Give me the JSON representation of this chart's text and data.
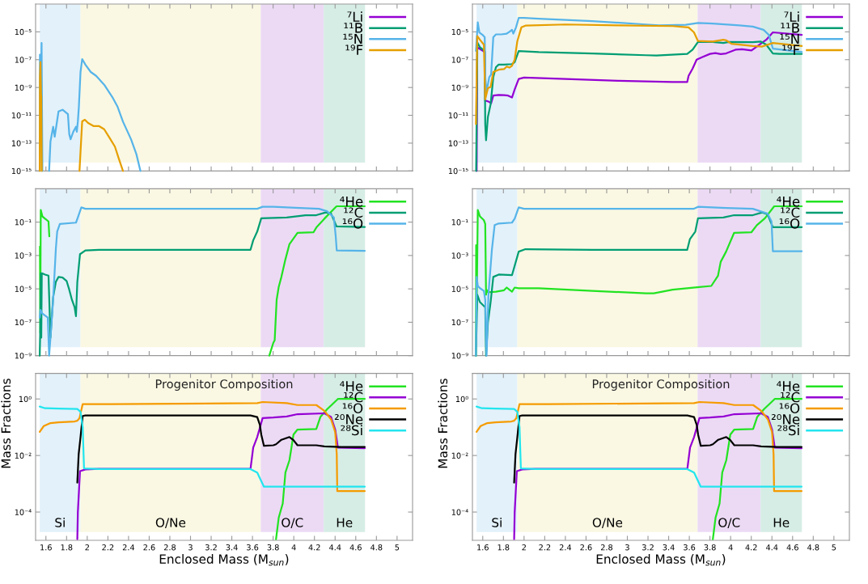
{
  "chart_data": [
    {
      "type": "line",
      "log": "y",
      "legend": "top right",
      "tick_labels": "y",
      "xlim": [
        1.5,
        5.15
      ],
      "xticks": [
        1.6,
        1.8,
        2,
        2.2,
        2.4,
        2.6,
        2.8,
        3,
        3.2,
        3.4,
        3.6,
        3.8,
        4,
        4.2,
        4.4,
        4.6,
        4.8,
        5
      ],
      "ylim": [
        1e-15,
        0.001
      ],
      "yticks": [
        {
          "value": 1e-15,
          "label": "10⁻¹⁵"
        },
        {
          "value": 1e-13,
          "label": "10⁻¹³"
        },
        {
          "value": 1e-11,
          "label": "10⁻¹¹"
        },
        {
          "value": 1e-09,
          "label": "10⁻⁹"
        },
        {
          "value": 1e-07,
          "label": "10⁻⁷"
        },
        {
          "value": 1e-05,
          "label": "10⁻⁵"
        }
      ],
      "bands": [
        {
          "axis": "x",
          "from": 1.54,
          "to": 1.935,
          "label": null,
          "color": "#e3f1fa"
        },
        {
          "axis": "x",
          "from": 1.935,
          "to": 3.68,
          "label": null,
          "color": "#faf8e3"
        },
        {
          "axis": "x",
          "from": 3.68,
          "to": 4.29,
          "label": null,
          "color": "#ecdaf5"
        },
        {
          "axis": "x",
          "from": 4.29,
          "to": 4.69,
          "label": null,
          "color": "#d6ede6"
        }
      ],
      "series": [
        {
          "name": "⁷Li",
          "color": "#9400d3"
        },
        {
          "name": "¹¹B",
          "color": "#009e73"
        },
        {
          "name": "¹⁵N",
          "color": "#56b4e9",
          "x": [
            1.54,
            1.542,
            1.55,
            1.558,
            1.566,
            1.6,
            1.631,
            1.644,
            1.67,
            1.685,
            1.722,
            1.761,
            1.813,
            1.826,
            1.839,
            1.865,
            1.891,
            1.899,
            1.909,
            1.919,
            1.935,
            1.951,
            1.982,
            2.034,
            2.086,
            2.164,
            2.242,
            2.294,
            2.346,
            2.424,
            2.476,
            2.515
          ],
          "values": [
            1e-15,
            2.3e-07,
            9e-11,
            1.6e-06,
            1e-15,
            null,
            1e-15,
            1.3e-13,
            1.5e-12,
            2.9e-13,
            1.9e-11,
            2.5e-11,
            1.2e-11,
            4.4e-13,
            1.9e-13,
            6.6e-13,
            1.5e-12,
            6.6e-13,
            3.5e-12,
            4.1e-11,
            1.3e-08,
            1.1e-07,
            4.4e-08,
            1.3e-08,
            6.9e-09,
            1.6e-09,
            2.1e-10,
            4.1e-11,
            3.5e-12,
            1.9e-13,
            1.6e-14,
            1e-15
          ]
        },
        {
          "name": "¹⁹F",
          "color": "#e69f00",
          "x": [
            1.54,
            1.542,
            1.547,
            1.553,
            1.555,
            1.56,
            1.7,
            1.925,
            1.951,
            1.977,
            2.008,
            2.06,
            2.112,
            2.164,
            2.216,
            2.268,
            2.307,
            2.346
          ],
          "values": [
            1e-15,
            5.6e-09,
            6.6e-08,
            2.1e-10,
            2.6e-10,
            1e-15,
            null,
            1e-15,
            3.7e-12,
            4.8e-12,
            2.8e-12,
            1.7e-12,
            1.7e-12,
            1e-12,
            2.4e-13,
            5.6e-14,
            7.2e-15,
            1e-15
          ]
        }
      ]
    },
    {
      "type": "line",
      "log": "y",
      "legend": "top right",
      "tick_labels": "y",
      "xlim": [
        1.5,
        5.15
      ],
      "xticks": [
        1.6,
        1.8,
        2,
        2.2,
        2.4,
        2.6,
        2.8,
        3,
        3.2,
        3.4,
        3.6,
        3.8,
        4,
        4.2,
        4.4,
        4.6,
        4.8,
        5
      ],
      "ylim": [
        1e-15,
        0.001
      ],
      "yticks": [
        {
          "value": 1e-15,
          "label": "10⁻¹⁵"
        },
        {
          "value": 1e-13,
          "label": "10⁻¹³"
        },
        {
          "value": 1e-11,
          "label": "10⁻¹¹"
        },
        {
          "value": 1e-09,
          "label": "10⁻⁹"
        },
        {
          "value": 1e-07,
          "label": "10⁻⁷"
        },
        {
          "value": 1e-05,
          "label": "10⁻⁵"
        }
      ],
      "bands": [
        {
          "axis": "x",
          "from": 1.54,
          "to": 1.935,
          "label": null,
          "color": "#e3f1fa"
        },
        {
          "axis": "x",
          "from": 1.935,
          "to": 3.68,
          "label": null,
          "color": "#faf8e3"
        },
        {
          "axis": "x",
          "from": 3.68,
          "to": 4.29,
          "label": null,
          "color": "#ecdaf5"
        },
        {
          "axis": "x",
          "from": 4.29,
          "to": 4.69,
          "label": null,
          "color": "#d6ede6"
        }
      ],
      "series": [
        {
          "name": "⁷Li",
          "color": "#9400d3",
          "x": [
            1.541,
            1.547,
            1.585,
            1.619,
            1.624,
            1.637,
            1.663,
            1.681,
            1.702,
            1.754,
            1.806,
            1.845,
            1.883,
            1.909,
            1.948,
            2.0,
            2.402,
            2.92,
            3.438,
            3.58,
            3.593,
            3.632,
            3.671,
            3.723,
            3.8,
            3.852,
            3.904,
            3.956,
            4.047,
            4.111,
            4.202,
            4.345,
            4.409,
            4.689
          ],
          "values": [
            1e-15,
            7.8e-07,
            5.2e-07,
            3.5e-07,
            1.1e-10,
            1.1e-10,
            9.1e-11,
            7.4e-11,
            2.6e-10,
            2.9e-10,
            2.8e-10,
            2.6e-10,
            1.9e-10,
            7.2e-10,
            4.1e-09,
            5.2e-09,
            4.1e-09,
            3e-09,
            2.5e-09,
            2.5e-09,
            6.9e-09,
            2.3e-08,
            1e-07,
            1.5e-07,
            2.6e-07,
            3e-07,
            2.5e-07,
            2.8e-07,
            5.2e-07,
            5.6e-07,
            4.6e-07,
            2.7e-06,
            9.2e-06,
            6.1e-06
          ]
        },
        {
          "name": "¹¹B",
          "color": "#009e73",
          "x": [
            1.536,
            1.547,
            1.573,
            1.619,
            1.624,
            1.632,
            1.65,
            1.676,
            1.702,
            1.728,
            1.754,
            1.806,
            1.883,
            1.909,
            1.948,
            2.142,
            2.661,
            3.179,
            3.282,
            3.58,
            3.632,
            3.684,
            3.826,
            3.93,
            3.982,
            4.215,
            4.293,
            4.345,
            4.409,
            4.474,
            4.689
          ],
          "values": [
            1e-15,
            1.8e-06,
            7.8e-07,
            4.2e-07,
            2.3e-12,
            1.6e-13,
            7.8e-12,
            6.1e-11,
            5.6e-09,
            2.9e-08,
            4.4e-08,
            4.4e-08,
            4.8e-08,
            6.6e-08,
            4.2e-07,
            3.5e-07,
            2.8e-07,
            2.1e-07,
            2e-07,
            2.6e-07,
            5.2e-07,
            1.9e-06,
            1.9e-06,
            1.6e-06,
            1.9e-06,
            1.8e-06,
            2e-06,
            1.2e-06,
            2.8e-07,
            2.6e-07,
            2.6e-07
          ]
        },
        {
          "name": "¹⁵N",
          "color": "#56b4e9",
          "x": [
            1.534,
            1.552,
            1.567,
            1.598,
            1.619,
            1.624,
            1.637,
            1.663,
            1.681,
            1.702,
            1.728,
            1.78,
            1.832,
            1.858,
            1.883,
            1.896,
            1.922,
            1.948,
            2.0,
            2.142,
            2.661,
            3.179,
            3.308,
            3.567,
            3.684,
            3.826,
            4.085,
            4.215,
            4.319,
            4.37,
            4.409,
            4.689
          ],
          "values": [
            4.2e-07,
            4.8e-05,
            9.2e-06,
            6.1e-06,
            4.1e-06,
            5.6e-09,
            4.8e-10,
            5.6e-09,
            8.5e-09,
            4.1e-06,
            6.6e-06,
            6.6e-06,
            7.5e-06,
            1e-05,
            1.4e-05,
            7.5e-06,
            2.1e-05,
            0.0001,
            0.0001,
            8.9e-05,
            5.9e-05,
            3.4e-05,
            2.9e-05,
            3.2e-05,
            4.4e-05,
            3.9e-05,
            2.9e-05,
            2.4e-05,
            1.4e-05,
            6.1e-06,
            6.3e-07,
            3.5e-07
          ]
        },
        {
          "name": "¹⁹F",
          "color": "#e69f00",
          "x": [
            1.534,
            1.547,
            1.573,
            1.611,
            1.624,
            1.65,
            1.676,
            1.702,
            1.754,
            1.806,
            1.832,
            1.858,
            1.883,
            1.909,
            1.935,
            1.974,
            2.013,
            2.402,
            2.92,
            3.438,
            3.593,
            3.645,
            3.684,
            3.826,
            3.93,
            3.956,
            4.008,
            4.215,
            4.306,
            4.409,
            4.689
          ],
          "values": [
            2.3e-12,
            5e-06,
            2.7e-06,
            1.2e-06,
            1.4e-10,
            8.9e-10,
            1.1e-09,
            1.3e-08,
            1.9e-08,
            2.1e-08,
            3.2e-08,
            2.7e-08,
            3.6e-08,
            1e-07,
            2.2e-06,
            2.1e-05,
            2.8e-05,
            3.4e-05,
            2.9e-05,
            2.6e-05,
            2.1e-05,
            9.2e-06,
            2.2e-06,
            2e-06,
            2.7e-06,
            2.5e-06,
            1.4e-06,
            9.6e-07,
            8.8e-07,
            1.6e-06,
            9.6e-07
          ]
        }
      ]
    },
    {
      "type": "line",
      "log": "y",
      "legend": "top right",
      "tick_labels": "y",
      "xlim": [
        1.5,
        5.15
      ],
      "xticks": [
        1.6,
        1.8,
        2,
        2.2,
        2.4,
        2.6,
        2.8,
        3,
        3.2,
        3.4,
        3.6,
        3.8,
        4,
        4.2,
        4.4,
        4.6,
        4.8,
        5
      ],
      "ylim": [
        1e-09,
        10
      ],
      "yticks": [
        {
          "value": 1e-09,
          "label": "10⁻⁹"
        },
        {
          "value": 1e-07,
          "label": "10⁻⁷"
        },
        {
          "value": 1e-05,
          "label": "10⁻⁵"
        },
        {
          "value": 0.001,
          "label": "10⁻³"
        },
        {
          "value": 0.1,
          "label": "10⁻¹"
        }
      ],
      "bands": [
        {
          "axis": "x",
          "from": 1.54,
          "to": 1.935,
          "label": null,
          "color": "#e3f1fa"
        },
        {
          "axis": "x",
          "from": 1.935,
          "to": 3.68,
          "label": null,
          "color": "#faf8e3"
        },
        {
          "axis": "x",
          "from": 3.68,
          "to": 4.29,
          "label": null,
          "color": "#ecdaf5"
        },
        {
          "axis": "x",
          "from": 4.29,
          "to": 4.69,
          "label": null,
          "color": "#d6ede6"
        }
      ],
      "series": [
        {
          "name": "⁴He",
          "color": "#22e322",
          "x": [
            1.542,
            1.545,
            1.55,
            1.566,
            1.592,
            1.625,
            1.633,
            2.5,
            3.763,
            3.802,
            3.815,
            3.834,
            3.854,
            3.88,
            3.919,
            3.958,
            4.036,
            4.192,
            4.218,
            4.296,
            4.414,
            4.687
          ],
          "values": [
            0.0034,
            2.4e-08,
            0.54,
            0.22,
            0.16,
            0.11,
            0.014,
            null,
            1e-09,
            5.9e-09,
            8.3e-09,
            2.2e-06,
            1.3e-05,
            5.2e-05,
            0.00059,
            0.0048,
            0.023,
            0.025,
            0.047,
            0.16,
            0.89,
            0.89
          ]
        },
        {
          "name": "¹²C",
          "color": "#009e73",
          "x": [
            1.54,
            1.545,
            1.55,
            1.555,
            1.56,
            1.592,
            1.625,
            1.644,
            1.67,
            1.696,
            1.722,
            1.761,
            1.8,
            1.826,
            1.852,
            1.878,
            1.891,
            1.904,
            1.93,
            1.982,
            2.112,
            2.762,
            3.581,
            3.607,
            3.646,
            3.685,
            3.932,
            4.114,
            4.218,
            4.309,
            4.361,
            4.414,
            4.687
          ],
          "values": [
            1e-09,
            3.4e-08,
            8.7e-05,
            1.2e-08,
            8.7e-05,
            7.2e-05,
            6.2e-05,
            1.2e-08,
            3.2e-06,
            2.6e-05,
            5.2e-05,
            4.8e-05,
            3e-05,
            8.9e-06,
            2.2e-06,
            7.8e-07,
            2.3e-07,
            2.6e-05,
            0.0012,
            0.002,
            0.0022,
            0.0022,
            0.0022,
            0.0081,
            0.027,
            0.17,
            0.19,
            0.26,
            0.26,
            0.38,
            0.32,
            0.055,
            0.051
          ]
        },
        {
          "name": "¹⁶O",
          "color": "#56b4e9",
          "x": [
            1.54,
            1.547,
            1.566,
            1.618,
            1.631,
            1.644,
            1.67,
            1.696,
            1.709,
            1.735,
            1.891,
            1.909,
            1.943,
            1.982,
            2.242,
            3.646,
            3.698,
            3.802,
            4.062,
            4.244,
            4.322,
            4.388,
            4.406,
            4.416,
            4.687
          ],
          "values": [
            1.9e-07,
            5.5e-07,
            3.3e-07,
            1.9e-07,
            1e-09,
            1.2e-08,
            2.2e-06,
            0.0024,
            0.027,
            0.078,
            0.093,
            0.19,
            0.76,
            0.63,
            0.63,
            0.63,
            0.83,
            0.83,
            0.71,
            0.63,
            0.45,
            0.19,
            0.014,
            0.002,
            0.0019
          ]
        }
      ]
    },
    {
      "type": "line",
      "log": "y",
      "legend": "top right",
      "tick_labels": "y",
      "xlim": [
        1.5,
        5.15
      ],
      "xticks": [
        1.6,
        1.8,
        2,
        2.2,
        2.4,
        2.6,
        2.8,
        3,
        3.2,
        3.4,
        3.6,
        3.8,
        4,
        4.2,
        4.4,
        4.6,
        4.8,
        5
      ],
      "ylim": [
        1e-09,
        10
      ],
      "yticks": [
        {
          "value": 1e-09,
          "label": "10⁻⁹"
        },
        {
          "value": 1e-07,
          "label": "10⁻⁷"
        },
        {
          "value": 1e-05,
          "label": "10⁻⁵"
        },
        {
          "value": 0.001,
          "label": "10⁻³"
        },
        {
          "value": 0.1,
          "label": "10⁻¹"
        }
      ],
      "bands": [
        {
          "axis": "x",
          "from": 1.54,
          "to": 1.935,
          "label": null,
          "color": "#e3f1fa"
        },
        {
          "axis": "x",
          "from": 1.935,
          "to": 3.68,
          "label": null,
          "color": "#faf8e3"
        },
        {
          "axis": "x",
          "from": 3.68,
          "to": 4.29,
          "label": null,
          "color": "#ecdaf5"
        },
        {
          "axis": "x",
          "from": 4.29,
          "to": 4.69,
          "label": null,
          "color": "#d6ede6"
        }
      ],
      "series": [
        {
          "name": "⁴He",
          "color": "#22e322",
          "x": [
            1.534,
            1.536,
            1.541,
            1.552,
            1.573,
            1.611,
            1.624,
            1.632,
            1.637,
            1.65,
            1.728,
            1.806,
            1.832,
            1.858,
            1.883,
            1.909,
            1.948,
            2.142,
            2.661,
            3.179,
            3.256,
            3.438,
            3.697,
            3.813,
            3.878,
            3.904,
            3.956,
            4.034,
            4.202,
            4.254,
            4.332,
            4.422,
            4.689
          ],
          "values": [
            1e-09,
            0.0041,
            5.5e-07,
            0.54,
            0.22,
            0.13,
            0.078,
            4.5e-06,
            8.9e-06,
            6.3e-06,
            6.8e-06,
            8.3e-06,
            1.2e-05,
            8.9e-06,
            6.8e-06,
            1.2e-05,
            1.1e-05,
            1.1e-05,
            7.6e-06,
            5.4e-06,
            5.4e-06,
            8.9e-06,
            1.3e-05,
            1.5e-05,
            6.2e-05,
            0.00042,
            0.0017,
            0.023,
            0.025,
            0.066,
            0.17,
            0.89,
            0.89
          ]
        },
        {
          "name": "¹²C",
          "color": "#009e73",
          "x": [
            1.534,
            1.547,
            1.573,
            1.624,
            1.632,
            1.65,
            1.676,
            1.702,
            1.754,
            1.883,
            1.948,
            2.013,
            2.661,
            3.58,
            3.606,
            3.658,
            3.684,
            3.93,
            4.034,
            4.215,
            4.306,
            4.358,
            4.409,
            4.689
          ],
          "values": [
            1e-09,
            4.5e-06,
            1.6e-06,
            7.8e-07,
            1e-09,
            9.5e-08,
            1.6e-06,
            5.2e-05,
            7.2e-05,
            6.6e-05,
            0.0017,
            0.0024,
            0.0022,
            0.0022,
            0.0096,
            0.027,
            0.17,
            0.19,
            0.26,
            0.26,
            0.38,
            0.29,
            0.05,
            0.05
          ]
        },
        {
          "name": "¹⁶O",
          "color": "#56b4e9",
          "x": [
            1.534,
            1.541,
            1.552,
            1.573,
            1.611,
            1.624,
            1.637,
            1.655,
            1.689,
            1.715,
            1.754,
            1.883,
            1.909,
            1.948,
            2.0,
            3.645,
            3.684,
            3.956,
            4.215,
            4.358,
            4.396,
            4.409,
            4.689
          ],
          "values": [
            1e-09,
            5.2e-05,
            1.5e-05,
            1.1e-05,
            7.6e-06,
            2.2e-06,
            1e-09,
            4.5e-06,
            0.0024,
            0.066,
            0.083,
            0.093,
            0.16,
            0.76,
            0.63,
            0.63,
            0.83,
            0.71,
            0.63,
            0.32,
            0.11,
            0.0018,
            0.0018
          ]
        }
      ]
    },
    {
      "type": "line",
      "log": "y",
      "legend": "top right",
      "title": "Progenitor Composition",
      "xlabel": "Enclosed Mass (M$_{sun}$)",
      "ylabel": "Mass Fractions",
      "xlim": [
        1.5,
        5.15
      ],
      "xticks": [
        1.6,
        1.8,
        2,
        2.2,
        2.4,
        2.6,
        2.8,
        3,
        3.2,
        3.4,
        3.6,
        3.8,
        4,
        4.2,
        4.4,
        4.6,
        4.8,
        5
      ],
      "ylim": [
        1e-05,
        8
      ],
      "yticks": [
        {
          "value": 0.0001,
          "label": "10⁻⁴"
        },
        {
          "value": 0.01,
          "label": "10⁻²"
        },
        {
          "value": 1,
          "label": "10⁰"
        }
      ],
      "bands": [
        {
          "axis": "x",
          "from": 1.54,
          "to": 1.935,
          "label": "Si",
          "color": "#e3f1fa"
        },
        {
          "axis": "x",
          "from": 1.935,
          "to": 3.68,
          "label": "O/Ne",
          "color": "#faf8e3"
        },
        {
          "axis": "x",
          "from": 3.68,
          "to": 4.29,
          "label": "O/C",
          "color": "#ecdaf5"
        },
        {
          "axis": "x",
          "from": 4.29,
          "to": 4.69,
          "label": "He",
          "color": "#d6ede6"
        }
      ],
      "series": [
        {
          "name": "⁴He",
          "color": "#22e322",
          "x": [
            3.828,
            3.854,
            3.893,
            3.919,
            3.958,
            3.997,
            4.036,
            4.218,
            4.257,
            4.322,
            4.427,
            4.687
          ],
          "values": [
            1.1e-05,
            6.3e-05,
            0.0002,
            0.0025,
            0.0068,
            0.055,
            0.083,
            0.086,
            0.23,
            0.43,
            1.0,
            1.0
          ]
        },
        {
          "name": "¹²C",
          "color": "#9400d3",
          "x": [
            1.904,
            1.909,
            1.93,
            1.982,
            2.112,
            3.581,
            3.607,
            3.646,
            3.698,
            3.802,
            3.932,
            4.036,
            4.296,
            4.361,
            4.401,
            4.427,
            4.687
          ],
          "values": [
            1.1e-05,
            9.6e-05,
            0.0028,
            0.0032,
            0.0034,
            0.0034,
            0.019,
            0.045,
            0.21,
            0.22,
            0.24,
            0.29,
            0.31,
            0.23,
            0.083,
            0.019,
            0.018
          ]
        },
        {
          "name": "¹⁶O",
          "color": "#f59b00",
          "x": [
            1.54,
            1.579,
            1.644,
            1.722,
            1.878,
            1.904,
            1.925,
            1.956,
            2.242,
            3.646,
            3.698,
            3.932,
            4.036,
            4.218,
            4.296,
            4.361,
            4.401,
            4.416,
            4.421,
            4.687
          ],
          "values": [
            0.069,
            0.11,
            0.14,
            0.15,
            0.16,
            0.17,
            0.21,
            0.66,
            0.66,
            0.71,
            0.78,
            0.71,
            0.61,
            0.61,
            0.38,
            0.19,
            0.067,
            0.011,
            0.00055,
            0.00055
          ]
        },
        {
          "name": "²⁰Ne",
          "color": "#000000",
          "x": [
            1.904,
            1.917,
            1.935,
            1.956,
            1.982,
            3.581,
            3.646,
            3.672,
            3.685,
            3.711,
            3.802,
            3.828,
            3.88,
            3.958,
            3.997,
            4.036,
            4.218,
            4.296,
            4.453,
            4.687
          ],
          "values": [
            0.0011,
            0.011,
            0.045,
            0.25,
            0.26,
            0.26,
            0.23,
            0.12,
            0.055,
            0.022,
            0.023,
            0.025,
            0.036,
            0.045,
            0.035,
            0.023,
            0.023,
            0.021,
            0.02,
            0.02
          ]
        },
        {
          "name": "²⁸Si",
          "color": "#22e5ee",
          "x": [
            1.54,
            1.592,
            1.722,
            1.904,
            1.935,
            1.956,
            1.969,
            2.112,
            3.581,
            3.646,
            3.711,
            4.687
          ],
          "values": [
            0.54,
            0.47,
            0.46,
            0.44,
            0.35,
            0.1,
            0.0035,
            0.0033,
            0.0033,
            0.0025,
            0.00079,
            0.00079
          ]
        }
      ]
    },
    {
      "type": "line",
      "log": "y",
      "legend": "top right",
      "title": "Progenitor Composition",
      "xlabel": "Enclosed Mass (M$_{sun}$)",
      "ylabel": "Mass Fractions",
      "xlim": [
        1.5,
        5.15
      ],
      "xticks": [
        1.6,
        1.8,
        2,
        2.2,
        2.4,
        2.6,
        2.8,
        3,
        3.2,
        3.4,
        3.6,
        3.8,
        4,
        4.2,
        4.4,
        4.6,
        4.8,
        5
      ],
      "ylim": [
        1e-05,
        8
      ],
      "yticks": [
        {
          "value": 0.0001,
          "label": "10⁻⁴"
        },
        {
          "value": 0.01,
          "label": "10⁻²"
        },
        {
          "value": 1,
          "label": "10⁰"
        }
      ],
      "bands": [
        {
          "axis": "x",
          "from": 1.54,
          "to": 1.935,
          "label": "Si",
          "color": "#e3f1fa"
        },
        {
          "axis": "x",
          "from": 1.935,
          "to": 3.68,
          "label": "O/Ne",
          "color": "#faf8e3"
        },
        {
          "axis": "x",
          "from": 3.68,
          "to": 4.29,
          "label": "O/C",
          "color": "#ecdaf5"
        },
        {
          "axis": "x",
          "from": 4.29,
          "to": 4.69,
          "label": "He",
          "color": "#d6ede6"
        }
      ],
      "series": [
        {
          "name": "⁴He",
          "color": "#22e322",
          "x": [
            3.828,
            3.854,
            3.893,
            3.919,
            3.958,
            3.997,
            4.036,
            4.218,
            4.257,
            4.322,
            4.427,
            4.687
          ],
          "values": [
            1.1e-05,
            6.3e-05,
            0.0002,
            0.0025,
            0.0068,
            0.055,
            0.083,
            0.086,
            0.23,
            0.43,
            1.0,
            1.0
          ]
        },
        {
          "name": "¹²C",
          "color": "#9400d3",
          "x": [
            1.904,
            1.909,
            1.93,
            1.982,
            2.112,
            3.581,
            3.607,
            3.646,
            3.698,
            3.802,
            3.932,
            4.036,
            4.296,
            4.361,
            4.401,
            4.427,
            4.687
          ],
          "values": [
            1.1e-05,
            9.6e-05,
            0.0028,
            0.0032,
            0.0034,
            0.0034,
            0.019,
            0.045,
            0.21,
            0.22,
            0.24,
            0.29,
            0.31,
            0.23,
            0.083,
            0.019,
            0.018
          ]
        },
        {
          "name": "¹⁶O",
          "color": "#f59b00",
          "x": [
            1.54,
            1.579,
            1.644,
            1.722,
            1.878,
            1.904,
            1.925,
            1.956,
            2.242,
            3.646,
            3.698,
            3.932,
            4.036,
            4.218,
            4.296,
            4.361,
            4.401,
            4.416,
            4.421,
            4.687
          ],
          "values": [
            0.069,
            0.11,
            0.14,
            0.15,
            0.16,
            0.17,
            0.21,
            0.66,
            0.66,
            0.71,
            0.78,
            0.71,
            0.61,
            0.61,
            0.38,
            0.19,
            0.067,
            0.011,
            0.00055,
            0.00055
          ]
        },
        {
          "name": "²⁰Ne",
          "color": "#000000",
          "x": [
            1.904,
            1.917,
            1.935,
            1.956,
            1.982,
            3.581,
            3.646,
            3.672,
            3.685,
            3.711,
            3.802,
            3.828,
            3.88,
            3.958,
            3.997,
            4.036,
            4.218,
            4.296,
            4.453,
            4.687
          ],
          "values": [
            0.0011,
            0.011,
            0.045,
            0.25,
            0.26,
            0.26,
            0.23,
            0.12,
            0.055,
            0.022,
            0.023,
            0.025,
            0.036,
            0.045,
            0.035,
            0.023,
            0.023,
            0.021,
            0.02,
            0.02
          ]
        },
        {
          "name": "²⁸Si",
          "color": "#22e5ee",
          "x": [
            1.54,
            1.592,
            1.722,
            1.904,
            1.935,
            1.956,
            1.969,
            2.112,
            3.581,
            3.646,
            3.711,
            4.687
          ],
          "values": [
            0.54,
            0.47,
            0.46,
            0.44,
            0.35,
            0.1,
            0.0035,
            0.0033,
            0.0033,
            0.0025,
            0.00079,
            0.00079
          ]
        }
      ]
    }
  ]
}
